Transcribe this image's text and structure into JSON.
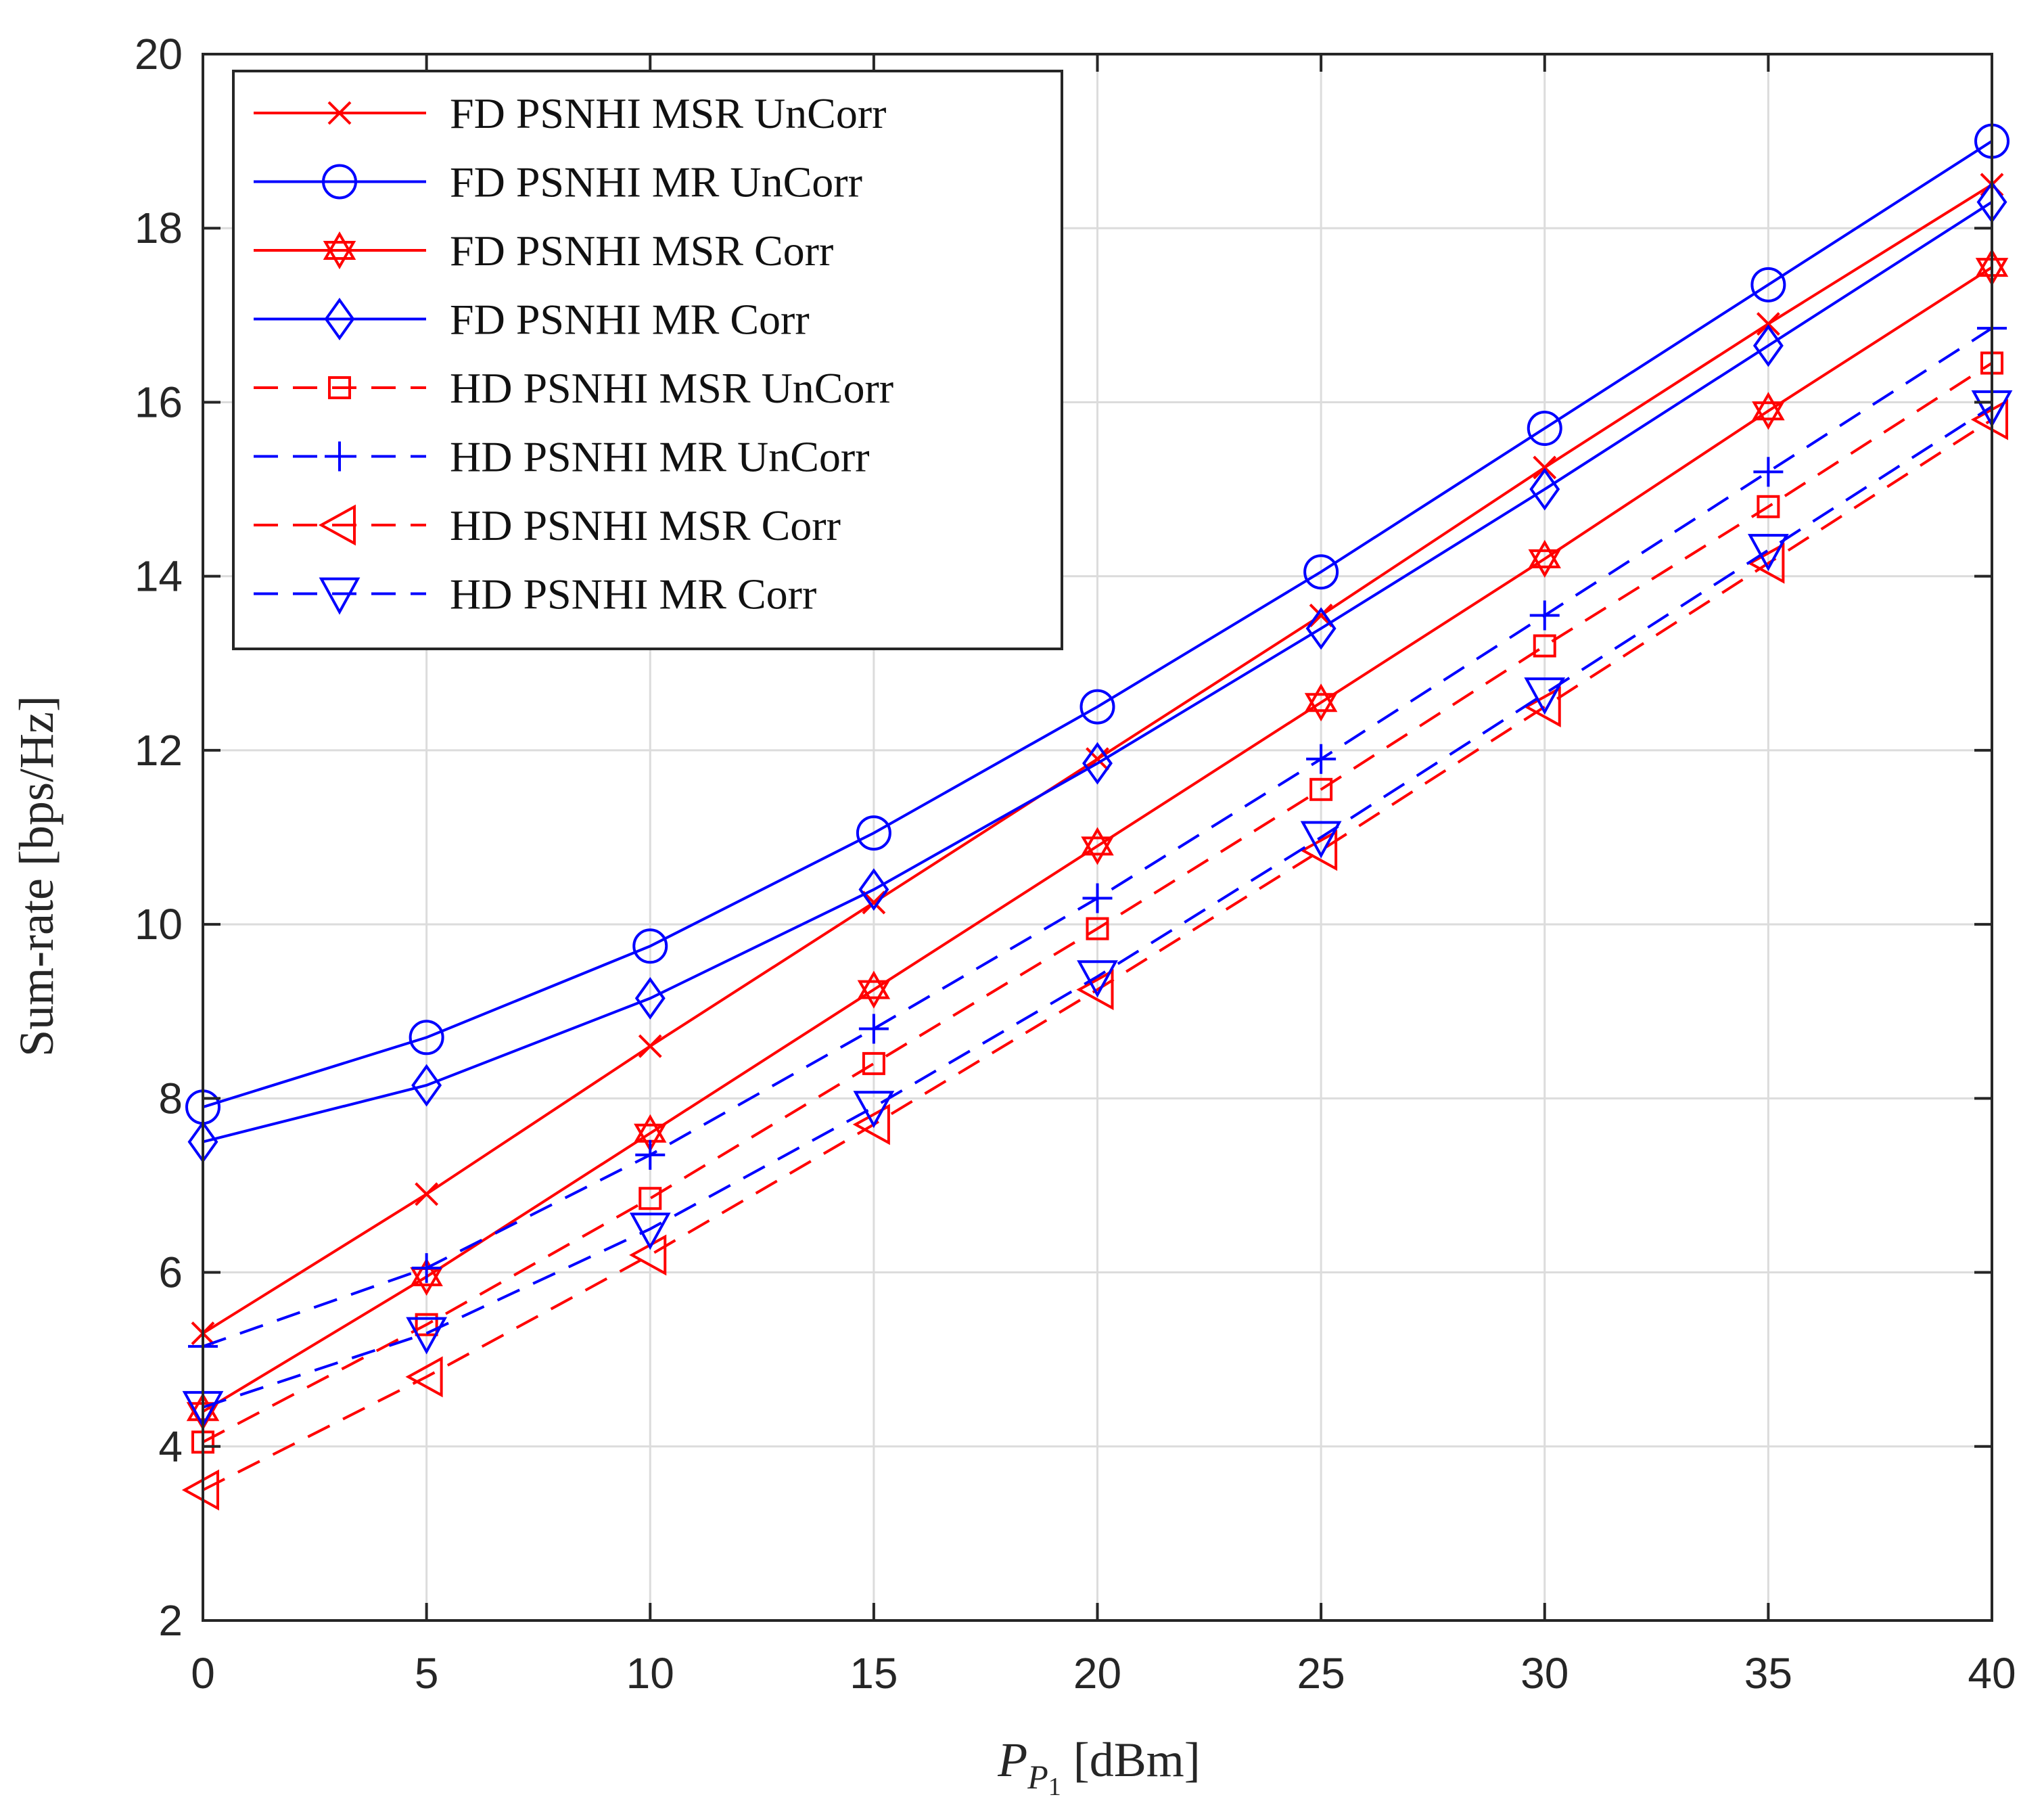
{
  "chart_data": {
    "type": "line",
    "title": "",
    "xlabel": {
      "main": "P",
      "sub": "P",
      "subsub": "1",
      "unit": " [dBm]"
    },
    "ylabel": "Sum-rate [bps/Hz]",
    "xlim": [
      0,
      40
    ],
    "ylim": [
      2,
      20
    ],
    "xticks": [
      0,
      5,
      10,
      15,
      20,
      25,
      30,
      35,
      40
    ],
    "yticks": [
      2,
      4,
      6,
      8,
      10,
      12,
      14,
      16,
      18,
      20
    ],
    "grid": true,
    "legend_location": "top-left",
    "x": [
      0,
      5,
      10,
      15,
      20,
      25,
      30,
      35,
      40
    ],
    "series": [
      {
        "name": "FD PSNHI MSR UnCorr",
        "color": "#ff0000",
        "line": "solid",
        "marker": "x",
        "values": [
          5.3,
          6.9,
          8.6,
          10.25,
          11.9,
          13.55,
          15.25,
          16.9,
          18.5
        ]
      },
      {
        "name": "FD PSNHI MR UnCorr",
        "color": "#0000ff",
        "line": "solid",
        "marker": "circle",
        "values": [
          7.9,
          8.7,
          9.75,
          11.05,
          12.5,
          14.05,
          15.7,
          17.35,
          19.0
        ]
      },
      {
        "name": "FD PSNHI MSR Corr",
        "color": "#ff0000",
        "line": "solid",
        "marker": "hexagram",
        "values": [
          4.4,
          5.95,
          7.6,
          9.25,
          10.9,
          12.55,
          14.2,
          15.9,
          17.55
        ]
      },
      {
        "name": "FD PSNHI MR Corr",
        "color": "#0000ff",
        "line": "solid",
        "marker": "diamond",
        "values": [
          7.5,
          8.15,
          9.15,
          10.4,
          11.85,
          13.4,
          15.0,
          16.65,
          18.3
        ]
      },
      {
        "name": "HD PSNHI MSR UnCorr",
        "color": "#ff0000",
        "line": "dashed",
        "marker": "square",
        "values": [
          4.05,
          5.4,
          6.85,
          8.4,
          9.95,
          11.55,
          13.2,
          14.8,
          16.45
        ]
      },
      {
        "name": "HD PSNHI MR UnCorr",
        "color": "#0000ff",
        "line": "dashed",
        "marker": "plus",
        "values": [
          5.15,
          6.05,
          7.35,
          8.8,
          10.3,
          11.9,
          13.55,
          15.2,
          16.85
        ]
      },
      {
        "name": "HD PSNHI MSR Corr",
        "color": "#ff0000",
        "line": "dashed",
        "marker": "triangle-left",
        "values": [
          3.5,
          4.8,
          6.2,
          7.7,
          9.25,
          10.85,
          12.5,
          14.15,
          15.8
        ]
      },
      {
        "name": "HD PSNHI MR Corr",
        "color": "#0000ff",
        "line": "dashed",
        "marker": "triangle-down",
        "values": [
          4.45,
          5.3,
          6.5,
          7.9,
          9.4,
          11.0,
          12.65,
          14.3,
          15.95
        ]
      }
    ]
  }
}
